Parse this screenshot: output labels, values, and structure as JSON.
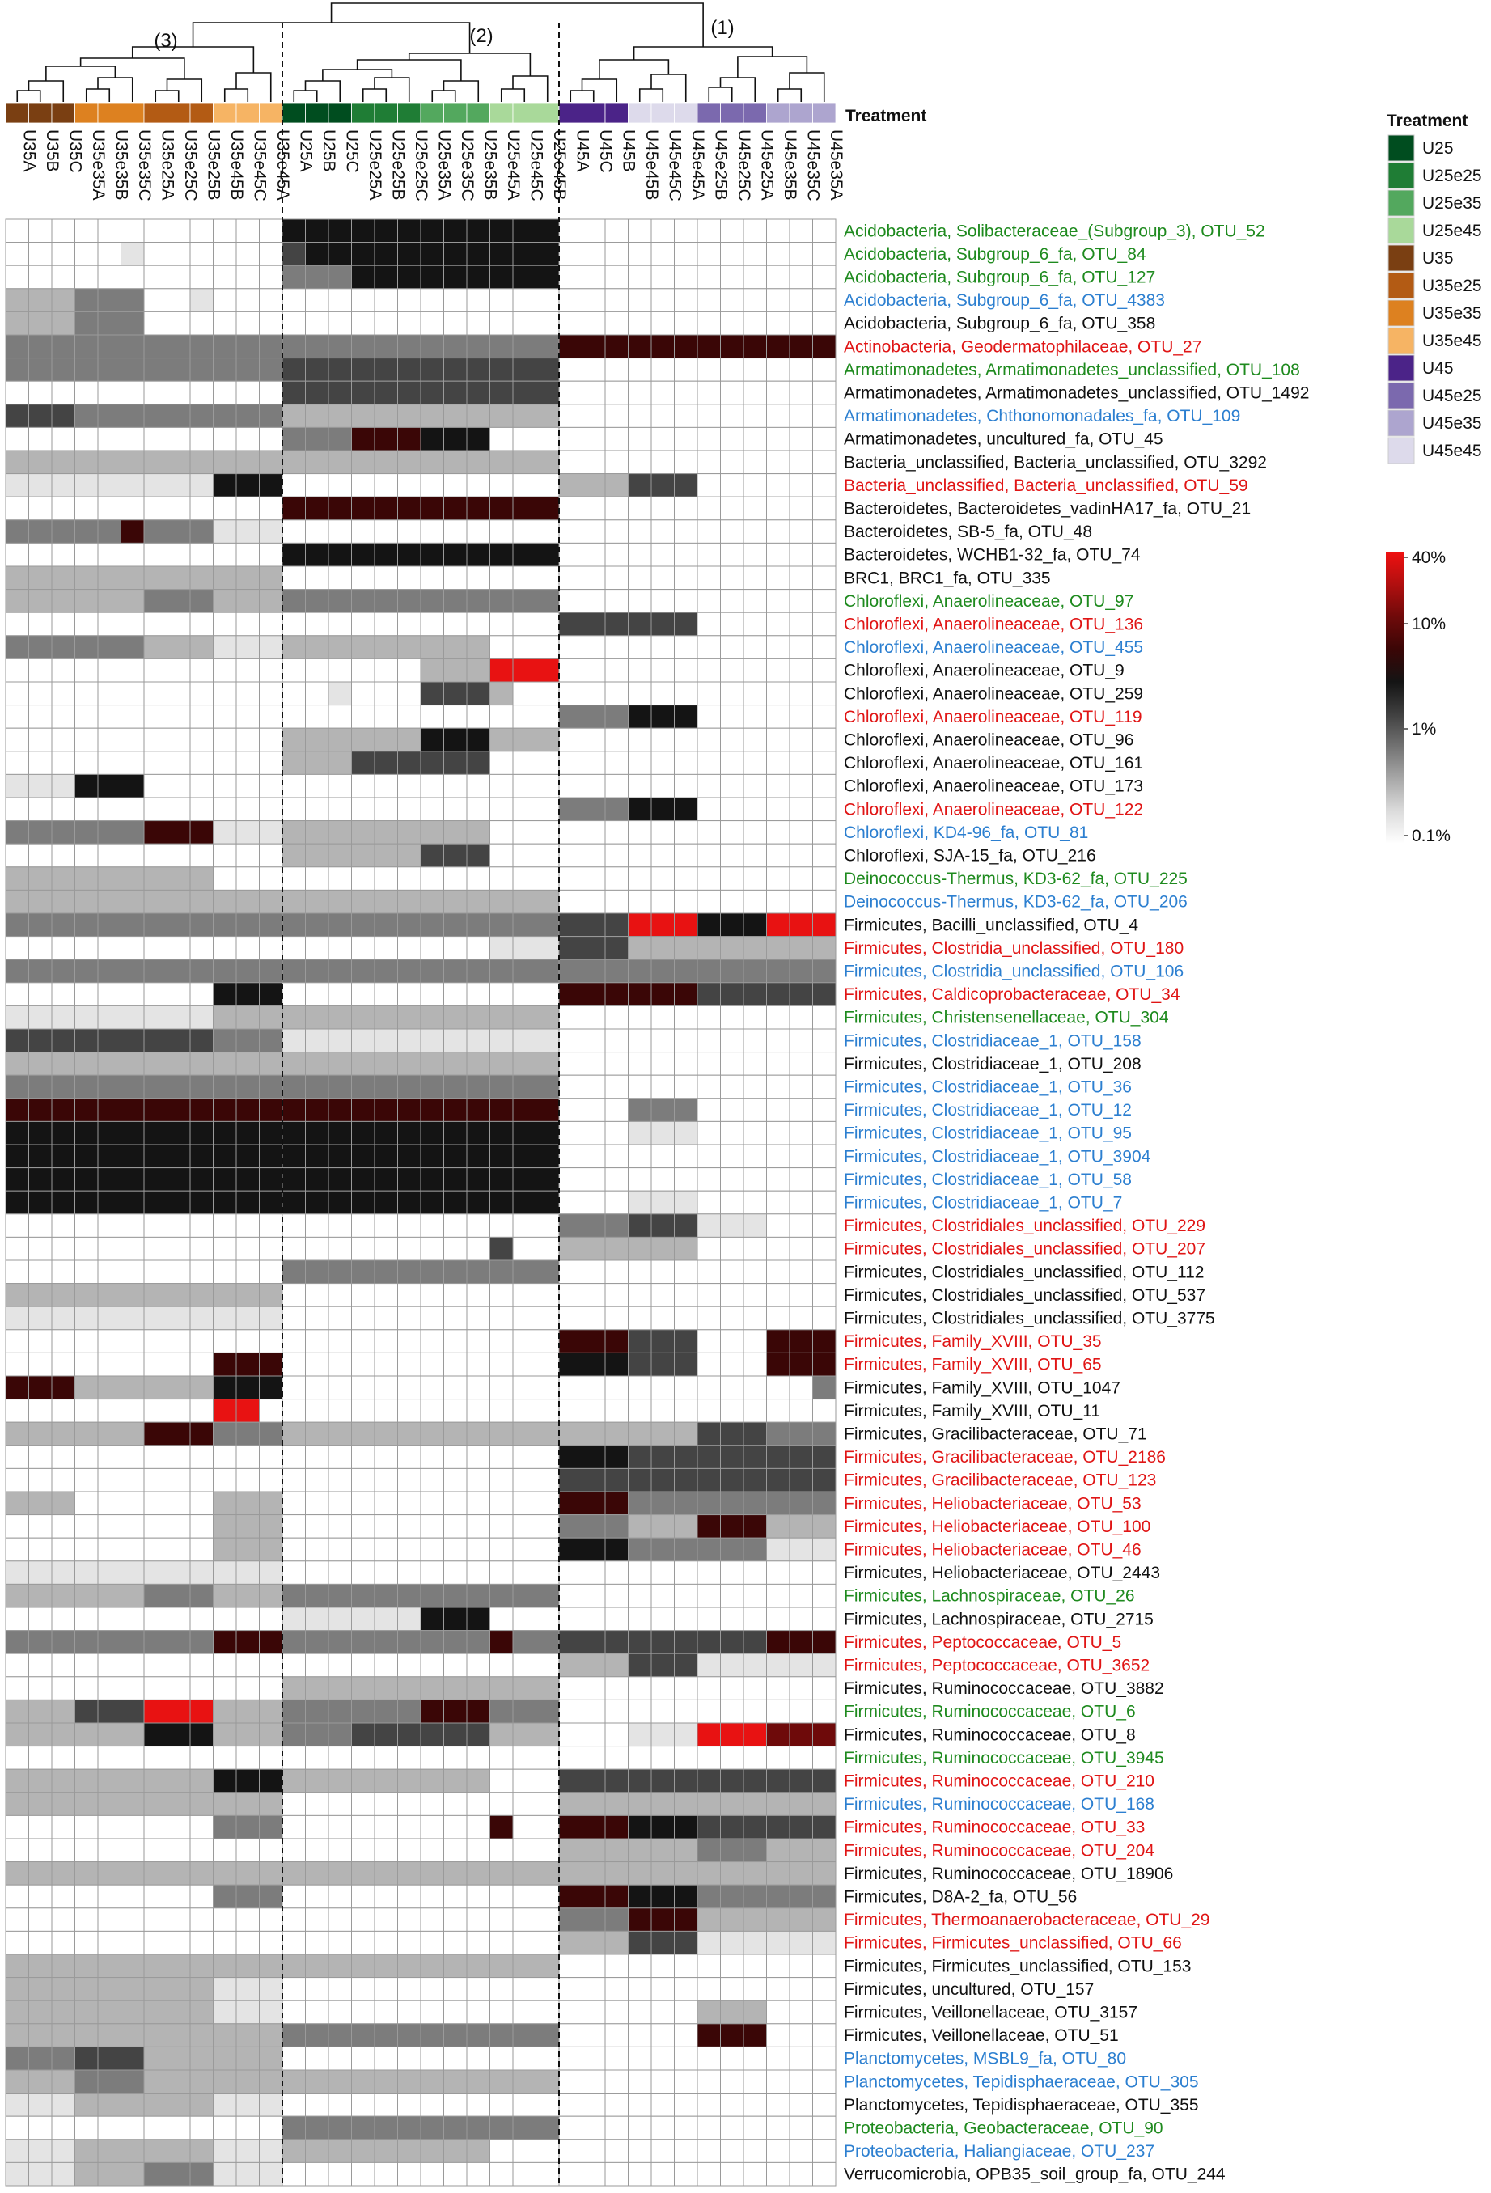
{
  "colors": {
    "label_black": "#111111",
    "label_green": "#1e8a1e",
    "label_blue": "#2c7fd0",
    "label_red": "#e01515"
  },
  "treatment_header": "Treatment",
  "legend_title": "Treatment",
  "cluster_labels": [
    "(1)",
    "(2)",
    "(3)"
  ],
  "colorscale": {
    "ticks": [
      "40%",
      "10%",
      "1%",
      "0.1%"
    ],
    "stops": [
      "#ffffff",
      "#dcdcdc",
      "#a8a8a8",
      "#737373",
      "#404040",
      "#141414",
      "#3a0606",
      "#6e0a0a",
      "#b00f0f",
      "#ee1111"
    ]
  },
  "treatments": [
    {
      "name": "U25",
      "color": "#004d1f"
    },
    {
      "name": "U25e25",
      "color": "#1f7d35"
    },
    {
      "name": "U25e35",
      "color": "#53a85e"
    },
    {
      "name": "U25e45",
      "color": "#a9d99a"
    },
    {
      "name": "U35",
      "color": "#7a3f12"
    },
    {
      "name": "U35e25",
      "color": "#b35b14"
    },
    {
      "name": "U35e35",
      "color": "#dd8120"
    },
    {
      "name": "U35e45",
      "color": "#f6b464"
    },
    {
      "name": "U45",
      "color": "#4b2388"
    },
    {
      "name": "U45e25",
      "color": "#7b69ae"
    },
    {
      "name": "U45e35",
      "color": "#ada5cf"
    },
    {
      "name": "U45e45",
      "color": "#dddaeb"
    }
  ],
  "chart_data": {
    "type": "heatmap",
    "scale": "log",
    "value_range": [
      "0.1%",
      "40%"
    ],
    "columns": [
      "U35A",
      "U35B",
      "U35C",
      "U35e35A",
      "U35e35B",
      "U35e35C",
      "U35e25A",
      "U35e25C",
      "U35e25B",
      "U35e45B",
      "U35e45C",
      "U35e45A",
      "U25A",
      "U25B",
      "U25C",
      "U25e25A",
      "U25e25B",
      "U25e25C",
      "U25e35A",
      "U25e35C",
      "U25e35B",
      "U25e45A",
      "U25e45C",
      "U25e45B",
      "U45A",
      "U45C",
      "U45B",
      "U45e45B",
      "U45e45C",
      "U45e45A",
      "U45e25B",
      "U45e25C",
      "U45e25A",
      "U45e35B",
      "U45e35C",
      "U45e35A"
    ],
    "column_treatment": [
      "U35",
      "U35",
      "U35",
      "U35e35",
      "U35e35",
      "U35e35",
      "U35e25",
      "U35e25",
      "U35e25",
      "U35e45",
      "U35e45",
      "U35e45",
      "U25",
      "U25",
      "U25",
      "U25e25",
      "U25e25",
      "U25e25",
      "U25e35",
      "U25e35",
      "U25e35",
      "U25e45",
      "U25e45",
      "U25e45",
      "U45",
      "U45",
      "U45",
      "U45e45",
      "U45e45",
      "U45e45",
      "U45e25",
      "U45e25",
      "U45e25",
      "U45e35",
      "U45e35",
      "U45e35"
    ],
    "clusters": [
      {
        "label": "(3)",
        "columns": "U35A–U35e45A"
      },
      {
        "label": "(2)",
        "columns": "U25A–U25e45B"
      },
      {
        "label": "(1)",
        "columns": "U45A–U45e35A"
      }
    ],
    "rows": [
      {
        "label": "Acidobacteria, Solibacteraceae_(Subgroup_3), OTU_52",
        "color": "green",
        "v": "000000000000555555555555000000000000"
      },
      {
        "label": "Acidobacteria, Subgroup_6_fa, OTU_84",
        "color": "green",
        "v": "000001000000455555555555000000000000"
      },
      {
        "label": "Acidobacteria, Subgroup_6_fa, OTU_127",
        "color": "green",
        "v": "000000000000333555555555000000000000"
      },
      {
        "label": "Acidobacteria, Subgroup_6_fa, OTU_4383",
        "color": "blue",
        "v": "222333001000000000000000000000000000"
      },
      {
        "label": "Acidobacteria, Subgroup_6_fa, OTU_358",
        "color": "black",
        "v": "222333000000000000000000000000000000"
      },
      {
        "label": "Actinobacteria, Geodermatophilaceae, OTU_27",
        "color": "red",
        "v": "333333333333333333333333666666666666"
      },
      {
        "label": "Armatimonadetes, Armatimonadetes_unclassified, OTU_108",
        "color": "green",
        "v": "333333333333444444444444000000000000"
      },
      {
        "label": "Armatimonadetes, Armatimonadetes_unclassified, OTU_1492",
        "color": "black",
        "v": "000000000000444444444444000000000000"
      },
      {
        "label": "Armatimonadetes, Chthonomonadales_fa, OTU_109",
        "color": "blue",
        "v": "444333333333222222222222000000000000"
      },
      {
        "label": "Armatimonadetes, uncultured_fa, OTU_45",
        "color": "black",
        "v": "000000000000333666555000000000000000"
      },
      {
        "label": "Bacteria_unclassified, Bacteria_unclassified, OTU_3292",
        "color": "black",
        "v": "222222222222222222222222000000000000"
      },
      {
        "label": "Bacteria_unclassified, Bacteria_unclassified, OTU_59",
        "color": "red",
        "v": "111111111555000000000000222444000000"
      },
      {
        "label": "Bacteroidetes, Bacteroidetes_vadinHA17_fa, OTU_21",
        "color": "black",
        "v": "000000000000666666666666000000000000"
      },
      {
        "label": "Bacteroidetes, SB-5_fa, OTU_48",
        "color": "black",
        "v": "333336333111000000000000000000000000"
      },
      {
        "label": "Bacteroidetes, WCHB1-32_fa, OTU_74",
        "color": "black",
        "v": "000000000000555555555555000000000000"
      },
      {
        "label": "BRC1, BRC1_fa, OTU_335",
        "color": "black",
        "v": "222222222222000000000000000000000000"
      },
      {
        "label": "Chloroflexi, Anaerolineaceae, OTU_97",
        "color": "green",
        "v": "222222333222333333333333000000000000"
      },
      {
        "label": "Chloroflexi, Anaerolineaceae, OTU_136",
        "color": "red",
        "v": "000000000000000000000000444444000000"
      },
      {
        "label": "Chloroflexi, Anaerolineaceae, OTU_455",
        "color": "blue",
        "v": "333333222111222222222000000000000000"
      },
      {
        "label": "Chloroflexi, Anaerolineaceae, OTU_9",
        "color": "black",
        "v": "000000000000000000222888000000000000"
      },
      {
        "label": "Chloroflexi, Anaerolineaceae, OTU_259",
        "color": "black",
        "v": "000000000000001000444200000000000000"
      },
      {
        "label": "Chloroflexi, Anaerolineaceae, OTU_119",
        "color": "red",
        "v": "000000000000000000000000333555000000"
      },
      {
        "label": "Chloroflexi, Anaerolineaceae, OTU_96",
        "color": "black",
        "v": "000000000000222222555222000000000000"
      },
      {
        "label": "Chloroflexi, Anaerolineaceae, OTU_161",
        "color": "black",
        "v": "000000000000222444444000000000000000"
      },
      {
        "label": "Chloroflexi, Anaerolineaceae, OTU_173",
        "color": "black",
        "v": "111555000000000000000000000000000000"
      },
      {
        "label": "Chloroflexi, Anaerolineaceae, OTU_122",
        "color": "red",
        "v": "000000000000000000000000333555000000"
      },
      {
        "label": "Chloroflexi, KD4-96_fa, OTU_81",
        "color": "blue",
        "v": "333333666111222222222000000000000000"
      },
      {
        "label": "Chloroflexi, SJA-15_fa, OTU_216",
        "color": "black",
        "v": "000000000000222222444000000000000000"
      },
      {
        "label": "Deinococcus-Thermus, KD3-62_fa, OTU_225",
        "color": "green",
        "v": "222222222000000000000000000000000000"
      },
      {
        "label": "Deinococcus-Thermus, KD3-62_fa, OTU_206",
        "color": "blue",
        "v": "222222222222222222222222000000000000"
      },
      {
        "label": "Firmicutes, Bacilli_unclassified, OTU_4",
        "color": "black",
        "v": "333333333333333333333333444888555888"
      },
      {
        "label": "Firmicutes, Clostridia_unclassified, OTU_180",
        "color": "red",
        "v": "000000000000000000000111444222222222"
      },
      {
        "label": "Firmicutes, Clostridia_unclassified, OTU_106",
        "color": "blue",
        "v": "333333333333333333333333333333333333"
      },
      {
        "label": "Firmicutes, Caldicoprobacteraceae, OTU_34",
        "color": "red",
        "v": "000000000555000000000000666666444444"
      },
      {
        "label": "Firmicutes, Christensenellaceae, OTU_304",
        "color": "green",
        "v": "111111111222222222222222000000000000"
      },
      {
        "label": "Firmicutes, Clostridiaceae_1, OTU_158",
        "color": "blue",
        "v": "444444444333111111111111000000000000"
      },
      {
        "label": "Firmicutes, Clostridiaceae_1, OTU_208",
        "color": "black",
        "v": "222222222222222222222222000000000000"
      },
      {
        "label": "Firmicutes, Clostridiaceae_1, OTU_36",
        "color": "blue",
        "v": "333333333333333333333333000000000000"
      },
      {
        "label": "Firmicutes, Clostridiaceae_1, OTU_12",
        "color": "blue",
        "v": "666666666666666666666666000333000000"
      },
      {
        "label": "Firmicutes, Clostridiaceae_1, OTU_95",
        "color": "blue",
        "v": "555555555555555555555555000111000000"
      },
      {
        "label": "Firmicutes, Clostridiaceae_1, OTU_3904",
        "color": "blue",
        "v": "555555555555555555555555000000000000"
      },
      {
        "label": "Firmicutes, Clostridiaceae_1, OTU_58",
        "color": "blue",
        "v": "555555555555555555555555000000000000"
      },
      {
        "label": "Firmicutes, Clostridiaceae_1, OTU_7",
        "color": "blue",
        "v": "555555555555555555555555000111000000"
      },
      {
        "label": "Firmicutes, Clostridiales_unclassified, OTU_229",
        "color": "red",
        "v": "000000000000000000000000333444111000"
      },
      {
        "label": "Firmicutes, Clostridiales_unclassified, OTU_207",
        "color": "red",
        "v": "000000000000000000000400222222000000"
      },
      {
        "label": "Firmicutes, Clostridiales_unclassified, OTU_112",
        "color": "black",
        "v": "000000000000333333333333000000000000"
      },
      {
        "label": "Firmicutes, Clostridiales_unclassified, OTU_537",
        "color": "black",
        "v": "222222222222000000000000000000000000"
      },
      {
        "label": "Firmicutes, Clostridiales_unclassified, OTU_3775",
        "color": "black",
        "v": "111111111111000000000000000000000000"
      },
      {
        "label": "Firmicutes, Family_XVIII, OTU_35",
        "color": "red",
        "v": "000000000000000000000000666444000666"
      },
      {
        "label": "Firmicutes, Family_XVIII, OTU_65",
        "color": "red",
        "v": "000000000666000000000000555444000666"
      },
      {
        "label": "Firmicutes, Family_XVIII, OTU_1047",
        "color": "black",
        "v": "666222222555000000000000000000000003"
      },
      {
        "label": "Firmicutes, Family_XVIII, OTU_11",
        "color": "black",
        "v": "000000000880000000000000000000000000"
      },
      {
        "label": "Firmicutes, Gracilibacteraceae, OTU_71",
        "color": "black",
        "v": "222222666333222222222222222222444333"
      },
      {
        "label": "Firmicutes, Gracilibacteraceae, OTU_2186",
        "color": "red",
        "v": "000000000000000000000000555444444444"
      },
      {
        "label": "Firmicutes, Gracilibacteraceae, OTU_123",
        "color": "red",
        "v": "000000000000000000000000444444444444"
      },
      {
        "label": "Firmicutes, Heliobacteriaceae, OTU_53",
        "color": "red",
        "v": "222000000222000000000000666333333333"
      },
      {
        "label": "Firmicutes, Heliobacteriaceae, OTU_100",
        "color": "red",
        "v": "000000000222000000000000333222666222"
      },
      {
        "label": "Firmicutes, Heliobacteriaceae, OTU_46",
        "color": "red",
        "v": "000000000222000000000000555333333111"
      },
      {
        "label": "Firmicutes, Heliobacteriaceae, OTU_2443",
        "color": "black",
        "v": "111111111111000000000000000000000000"
      },
      {
        "label": "Firmicutes, Lachnospiraceae, OTU_26",
        "color": "green",
        "v": "222222333222333333333333000000000000"
      },
      {
        "label": "Firmicutes, Lachnospiraceae, OTU_2715",
        "color": "black",
        "v": "000000000000111111555000000000000000"
      },
      {
        "label": "Firmicutes, Peptococcaceae, OTU_5",
        "color": "red",
        "v": "333333333666333333333633444444444666"
      },
      {
        "label": "Firmicutes, Peptococcaceae, OTU_3652",
        "color": "red",
        "v": "000000000000000000000000222444111111"
      },
      {
        "label": "Firmicutes, Ruminococcaceae, OTU_3882",
        "color": "black",
        "v": "000000000000222222222222000000000000"
      },
      {
        "label": "Firmicutes, Ruminococcaceae, OTU_6",
        "color": "green",
        "v": "222444888222333333666333000000000000"
      },
      {
        "label": "Firmicutes, Ruminococcaceae, OTU_8",
        "color": "black",
        "v": "222222555222333444444222000111888777"
      },
      {
        "label": "Firmicutes, Ruminococcaceae, OTU_3945",
        "color": "green",
        "v": "000000000000000000000000000000000000"
      },
      {
        "label": "Firmicutes, Ruminococcaceae, OTU_210",
        "color": "red",
        "v": "222222222555222222222000444444444444"
      },
      {
        "label": "Firmicutes, Ruminococcaceae, OTU_168",
        "color": "blue",
        "v": "222222222222000000000000222222222222"
      },
      {
        "label": "Firmicutes, Ruminococcaceae, OTU_33",
        "color": "red",
        "v": "000000000333000000000600666555444444"
      },
      {
        "label": "Firmicutes, Ruminococcaceae, OTU_204",
        "color": "red",
        "v": "000000000000000000000000222222333222"
      },
      {
        "label": "Firmicutes, Ruminococcaceae, OTU_18906",
        "color": "black",
        "v": "222222222222222222222222222222222222"
      },
      {
        "label": "Firmicutes, D8A-2_fa, OTU_56",
        "color": "black",
        "v": "000000000333000000000000666555333333"
      },
      {
        "label": "Firmicutes, Thermoanaerobacteraceae, OTU_29",
        "color": "red",
        "v": "000000000000000000000000333666222222"
      },
      {
        "label": "Firmicutes, Firmicutes_unclassified, OTU_66",
        "color": "red",
        "v": "000000000000000000000000222444111111"
      },
      {
        "label": "Firmicutes, Firmicutes_unclassified, OTU_153",
        "color": "black",
        "v": "222222222222222222222222000000000000"
      },
      {
        "label": "Firmicutes, uncultured, OTU_157",
        "color": "black",
        "v": "222222222111000000000000000000000000"
      },
      {
        "label": "Firmicutes, Veillonellaceae, OTU_3157",
        "color": "black",
        "v": "222222222111000000000000000000222000"
      },
      {
        "label": "Firmicutes, Veillonellaceae, OTU_51",
        "color": "black",
        "v": "222222222222333333333333000000666000"
      },
      {
        "label": "Planctomycetes, MSBL9_fa, OTU_80",
        "color": "blue",
        "v": "333444222222000000000000000000000000"
      },
      {
        "label": "Planctomycetes, Tepidisphaeraceae, OTU_305",
        "color": "blue",
        "v": "222333222222222222222222000000000000"
      },
      {
        "label": "Planctomycetes, Tepidisphaeraceae, OTU_355",
        "color": "black",
        "v": "111222222111000000000000000000000000"
      },
      {
        "label": "Proteobacteria, Geobacteraceae, OTU_90",
        "color": "green",
        "v": "000000000000333333333333000000000000"
      },
      {
        "label": "Proteobacteria, Haliangiaceae, OTU_237",
        "color": "blue",
        "v": "111222222111222222222000000000000000"
      },
      {
        "label": "Verrucomicrobia, OPB35_soil_group_fa, OTU_244",
        "color": "black",
        "v": "111222333111000000000000000000000000"
      }
    ]
  }
}
